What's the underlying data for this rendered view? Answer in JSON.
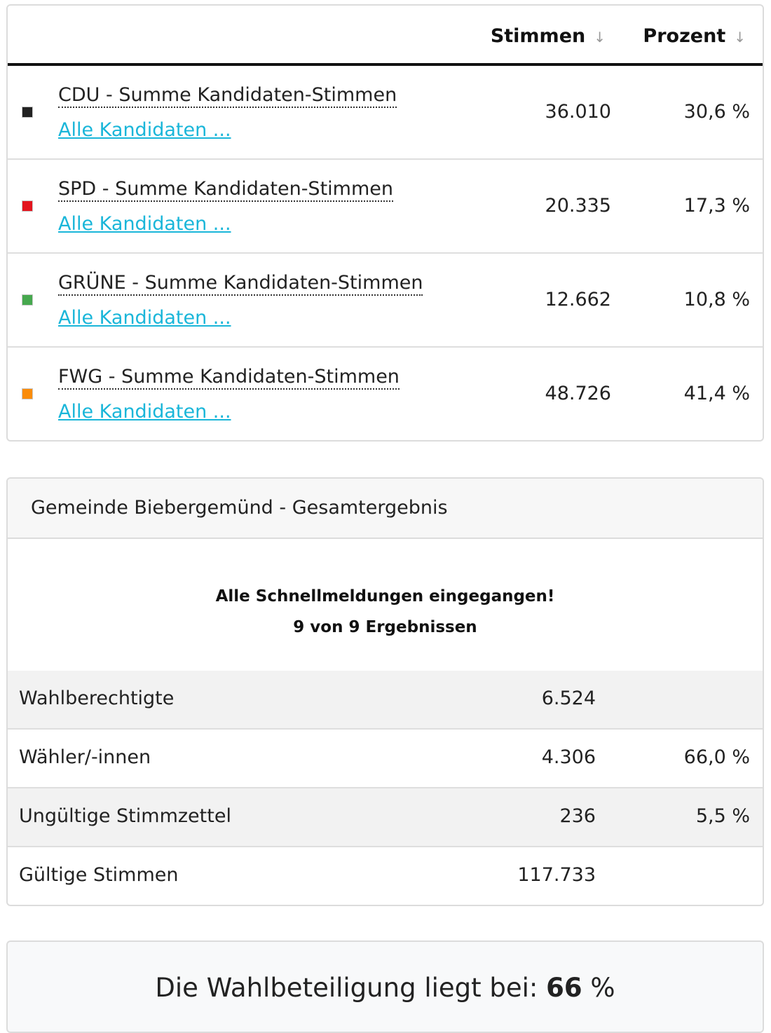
{
  "party_table": {
    "headers": {
      "stimmen": "Stimmen",
      "prozent": "Prozent",
      "sort_icon": "↓"
    },
    "rows": [
      {
        "party": "CDU",
        "name": "CDU - Summe Kandidaten-Stimmen",
        "link": "Alle Kandidaten ...",
        "votes": "36.010",
        "percent": "30,6 %",
        "color": "#222222"
      },
      {
        "party": "SPD",
        "name": "SPD - Summe Kandidaten-Stimmen",
        "link": "Alle Kandidaten ...",
        "votes": "20.335",
        "percent": "17,3 %",
        "color": "#e3141e"
      },
      {
        "party": "GRÜNE",
        "name": "GRÜNE - Summe Kandidaten-Stimmen",
        "link": "Alle Kandidaten ...",
        "votes": "12.662",
        "percent": "10,8 %",
        "color": "#46a84e"
      },
      {
        "party": "FWG",
        "name": "FWG - Summe Kandidaten-Stimmen",
        "link": "Alle Kandidaten ...",
        "votes": "48.726",
        "percent": "41,4 %",
        "color": "#fa8c0a"
      }
    ]
  },
  "summary": {
    "title": "Gemeinde Biebergemünd - Gesamtergebnis",
    "notice_line1": "Alle Schnellmeldungen eingegangen!",
    "notice_line2": "9 von 9 Ergebnissen",
    "rows": [
      {
        "label": "Wahlberechtigte",
        "value": "6.524",
        "percent": ""
      },
      {
        "label": "Wähler/-innen",
        "value": "4.306",
        "percent": "66,0 %"
      },
      {
        "label": "Ungültige Stimmzettel",
        "value": "236",
        "percent": "5,5 %"
      },
      {
        "label": "Gültige Stimmen",
        "value": "117.733",
        "percent": ""
      }
    ]
  },
  "turnout": {
    "prefix": "Die Wahlbeteiligung liegt bei: ",
    "value": "66",
    "suffix": " %"
  },
  "colors": {
    "link": "#1ab6d9",
    "header_bg": "#f7f7f7",
    "alt_row_bg": "#f2f2f2",
    "turnout_bg": "#f8f9fa"
  }
}
